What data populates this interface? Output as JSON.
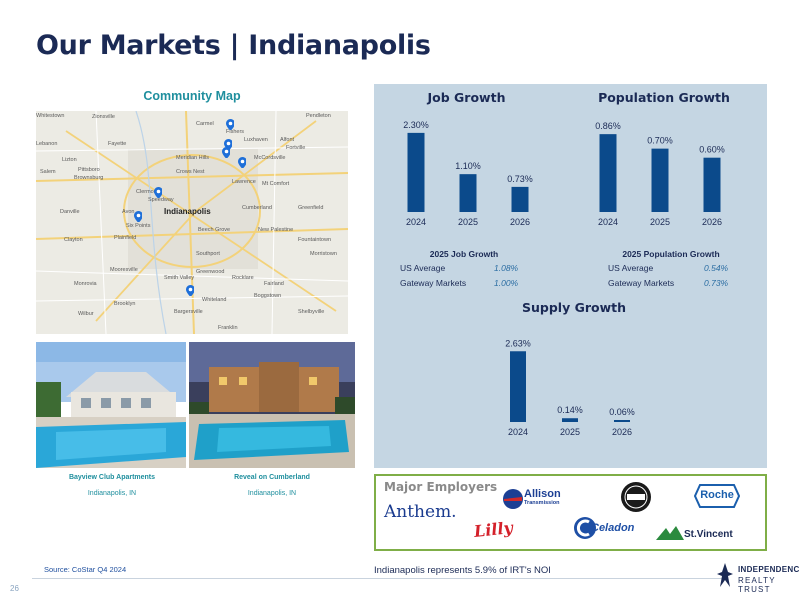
{
  "title": "Our Markets | Indianapolis",
  "map": {
    "heading": "Community Map",
    "city_label": "Indianapolis",
    "labels": [
      "Whitestown",
      "Zionsville",
      "Carmel",
      "Fishers",
      "Pendleton",
      "Lebanon",
      "Fayette",
      "Luxhaven",
      "Alfont",
      "Fortville",
      "Lizton",
      "Pittsboro",
      "Meridian Hills",
      "McCordsville",
      "Brownsburg",
      "Crows Nest",
      "Lawrence",
      "Mt Comfort",
      "Salem",
      "Clermont",
      "Speedway",
      "Cumberland",
      "Greenfield",
      "Danville",
      "Avon",
      "Six Points",
      "Beech Grove",
      "New Palestine",
      "Plainfield",
      "Southport",
      "Fountaintown",
      "Clayton",
      "Morristown",
      "Mooresville",
      "Smith Valley",
      "Greenwood",
      "Rocklare",
      "Fairland",
      "Monrovia",
      "Boggstown",
      "Brooklyn",
      "Whiteland",
      "Wilbur",
      "Bargersville",
      "Shelbyville",
      "Franklin"
    ]
  },
  "properties": [
    {
      "name": "Bayview Club Apartments",
      "location": "Indianapolis, IN"
    },
    {
      "name": "Reveal on Cumberland",
      "location": "Indianapolis, IN"
    }
  ],
  "charts": {
    "job_growth": {
      "title": "Job Growth"
    },
    "population_growth": {
      "title": "Population Growth"
    },
    "supply_growth": {
      "title": "Supply Growth"
    }
  },
  "chart_data": [
    {
      "type": "bar",
      "title": "Job Growth",
      "categories": [
        "2024",
        "2025",
        "2026"
      ],
      "values": [
        2.3,
        1.1,
        0.73
      ],
      "value_labels": [
        "2.30%",
        "1.10%",
        "0.73%"
      ],
      "ylim": [
        0,
        2.5
      ],
      "grid": false,
      "color": "#0b4a8b"
    },
    {
      "type": "bar",
      "title": "Population Growth",
      "categories": [
        "2024",
        "2025",
        "2026"
      ],
      "values": [
        0.86,
        0.7,
        0.6
      ],
      "value_labels": [
        "0.86%",
        "0.70%",
        "0.60%"
      ],
      "ylim": [
        0,
        0.95
      ],
      "grid": false,
      "color": "#0b4a8b"
    },
    {
      "type": "bar",
      "title": "Supply Growth",
      "categories": [
        "2024",
        "2025",
        "2026"
      ],
      "values": [
        2.63,
        0.14,
        0.06
      ],
      "value_labels": [
        "2.63%",
        "0.14%",
        "0.06%"
      ],
      "ylim": [
        0,
        2.9
      ],
      "grid": false,
      "color": "#0b4a8b"
    }
  ],
  "job_stats": {
    "title": "2025 Job Growth",
    "rows": [
      {
        "label": "US Average",
        "value": "1.08%"
      },
      {
        "label": "Gateway Markets",
        "value": "1.00%"
      }
    ]
  },
  "population_stats": {
    "title": "2025 Population Growth",
    "rows": [
      {
        "label": "US Average",
        "value": "0.54%"
      },
      {
        "label": "Gateway Markets",
        "value": "0.73%"
      }
    ]
  },
  "employers": {
    "heading": "Major Employers",
    "logos": [
      "Anthem.",
      "Allison",
      "Transmission",
      "Lilly",
      "Celadon",
      "Roche",
      "St.Vincent"
    ]
  },
  "source": "Source: CoStar Q4 2024",
  "noi_note": "Indianapolis represents 5.9% of IRT's NOI",
  "page_number": "26",
  "brand": {
    "line1": "INDEPENDENCE",
    "line2": "REALTY TRUST"
  }
}
